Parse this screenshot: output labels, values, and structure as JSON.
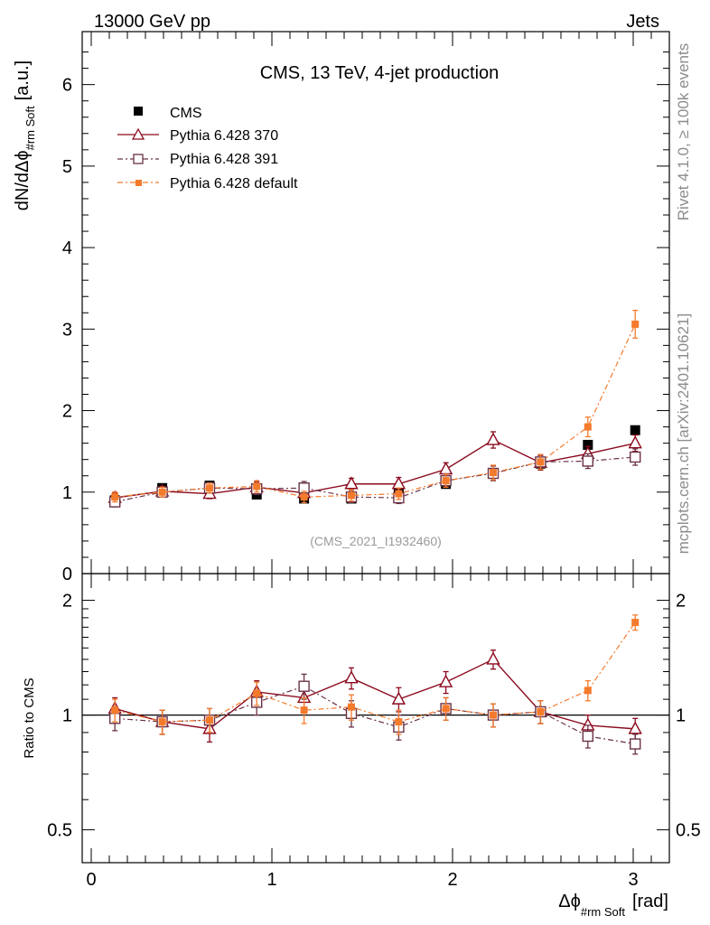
{
  "header": {
    "left": "13000 GeV pp",
    "right": "Jets"
  },
  "side_labels": {
    "rivet": "Rivet 4.1.0, ≥ 100k events",
    "mcplots": "mcplots.cern.ch [arXiv:2401.10621]"
  },
  "colors": {
    "cms": "#000000",
    "p370": "#8b0a1e",
    "p391": "#6b3347",
    "pdefault": "#f47a2c"
  },
  "chart_data": [
    {
      "type": "scatter",
      "title": "CMS, 13 TeV, 4-jet production",
      "watermark": "(CMS_2021_I1932460)",
      "xlabel": "Δϕ",
      "xlabel_sub": "#rm Soft",
      "xlabel_unit": "[rad]",
      "ylabel": "dN/dΔϕ",
      "ylabel_sub": "#rm Soft",
      "ylabel_unit": "[a.u.]",
      "xlim": [
        -0.05,
        3.2
      ],
      "ylim": [
        0,
        6.65
      ],
      "yticks": [
        0,
        1,
        2,
        3,
        4,
        5,
        6
      ],
      "ytick_labels": [
        "0",
        "1",
        "2",
        "3",
        "4",
        "5",
        "6"
      ],
      "x": [
        0.131,
        0.393,
        0.655,
        0.916,
        1.178,
        1.44,
        1.702,
        1.963,
        2.225,
        2.487,
        2.749,
        3.011
      ],
      "series": [
        {
          "name": "CMS",
          "marker": "filled-square",
          "line": "none",
          "values": [
            0.9,
            1.05,
            1.08,
            0.97,
            0.92,
            0.92,
            1.02,
            1.1,
            1.23,
            1.35,
            1.58,
            1.76
          ],
          "errors": [
            0.02,
            0.02,
            0.02,
            0.02,
            0.02,
            0.02,
            0.02,
            0.02,
            0.02,
            0.02,
            0.03,
            0.03
          ]
        },
        {
          "name": "Pythia 6.428 370",
          "marker": "open-triangle",
          "line": "solid",
          "values": [
            0.93,
            1.01,
            0.98,
            1.06,
            0.99,
            1.1,
            1.1,
            1.28,
            1.64,
            1.36,
            1.47,
            1.6
          ],
          "errors": [
            0.06,
            0.06,
            0.06,
            0.07,
            0.07,
            0.07,
            0.08,
            0.08,
            0.1,
            0.09,
            0.09,
            0.1
          ]
        },
        {
          "name": "Pythia 6.428 391",
          "marker": "open-square",
          "line": "dash-dot",
          "values": [
            0.88,
            1.0,
            1.05,
            1.04,
            1.05,
            0.94,
            0.93,
            1.14,
            1.23,
            1.37,
            1.38,
            1.43
          ],
          "errors": [
            0.06,
            0.06,
            0.06,
            0.07,
            0.08,
            0.07,
            0.07,
            0.08,
            0.09,
            0.09,
            0.09,
            0.1
          ]
        },
        {
          "name": "Pythia 6.428 default",
          "marker": "filled-small-square",
          "line": "dash-dot",
          "values": [
            0.94,
            1.0,
            1.05,
            1.07,
            0.94,
            0.96,
            0.98,
            1.14,
            1.24,
            1.37,
            1.8,
            3.06
          ],
          "errors": [
            0.06,
            0.06,
            0.06,
            0.07,
            0.07,
            0.07,
            0.07,
            0.08,
            0.09,
            0.09,
            0.12,
            0.17
          ]
        }
      ]
    },
    {
      "type": "scatter",
      "title": "",
      "xlabel": "Δϕ",
      "ylabel": "Ratio to CMS",
      "scale": "log",
      "ylim": [
        0.41,
        2.35
      ],
      "yticks": [
        0.5,
        1,
        2
      ],
      "ytick_labels": [
        "0.5",
        "1",
        "2"
      ],
      "xticks": [
        0,
        1,
        2,
        3
      ],
      "xtick_labels": [
        "0",
        "1",
        "2",
        "3"
      ],
      "reference_line": 1,
      "x": [
        0.131,
        0.393,
        0.655,
        0.916,
        1.178,
        1.44,
        1.702,
        1.963,
        2.225,
        2.487,
        2.749,
        3.011
      ],
      "series": [
        {
          "name": "Pythia 6.428 370",
          "marker": "open-triangle",
          "line": "solid",
          "values": [
            1.04,
            0.96,
            0.92,
            1.15,
            1.11,
            1.25,
            1.1,
            1.22,
            1.4,
            1.02,
            0.94,
            0.92
          ],
          "errors": [
            0.07,
            0.07,
            0.07,
            0.08,
            0.08,
            0.08,
            0.08,
            0.08,
            0.08,
            0.07,
            0.06,
            0.06
          ]
        },
        {
          "name": "Pythia 6.428 391",
          "marker": "open-square",
          "line": "dash-dot",
          "values": [
            0.98,
            0.96,
            0.97,
            1.08,
            1.19,
            1.01,
            0.93,
            1.04,
            1.0,
            1.02,
            0.88,
            0.84
          ],
          "errors": [
            0.07,
            0.07,
            0.07,
            0.08,
            0.09,
            0.08,
            0.07,
            0.07,
            0.07,
            0.07,
            0.06,
            0.05
          ]
        },
        {
          "name": "Pythia 6.428 default",
          "marker": "filled-small-square",
          "line": "dash-dot",
          "values": [
            1.03,
            0.96,
            0.97,
            1.14,
            1.03,
            1.05,
            0.96,
            1.04,
            1.0,
            1.02,
            1.16,
            1.75
          ],
          "errors": [
            0.07,
            0.07,
            0.07,
            0.08,
            0.08,
            0.08,
            0.07,
            0.07,
            0.07,
            0.07,
            0.07,
            0.08
          ]
        }
      ]
    }
  ]
}
